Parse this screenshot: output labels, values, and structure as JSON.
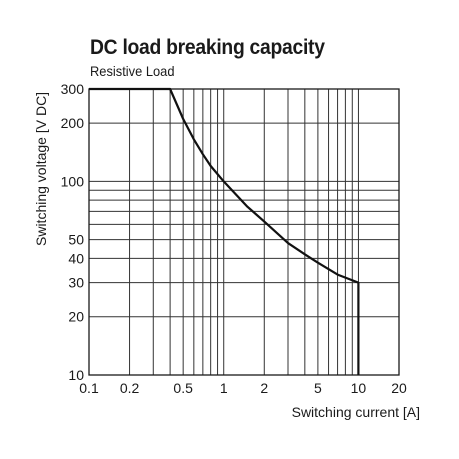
{
  "chart_data": {
    "type": "line",
    "title": "DC load breaking capacity",
    "subtitle": "Resistive Load",
    "xlabel": "Switching current [A]",
    "ylabel": "Switching voltage [V DC]",
    "xscale": "log",
    "yscale": "log",
    "xlim": [
      0.1,
      20
    ],
    "ylim": [
      10,
      300
    ],
    "xticks": [
      0.1,
      0.2,
      0.5,
      1,
      2,
      5,
      10,
      20
    ],
    "xtick_labels": [
      "0.1",
      "0.2",
      "0.5",
      "1",
      "2",
      "5",
      "10",
      "20"
    ],
    "yticks": [
      10,
      20,
      30,
      40,
      50,
      100,
      200,
      300
    ],
    "ytick_labels": [
      "10",
      "20",
      "30",
      "40",
      "50",
      "100",
      "200",
      "300"
    ],
    "x_gridlines": [
      0.1,
      0.2,
      0.3,
      0.4,
      0.5,
      0.6,
      0.7,
      0.8,
      0.9,
      1,
      2,
      3,
      4,
      5,
      6,
      7,
      8,
      9,
      10
    ],
    "y_gridlines": [
      10,
      20,
      30,
      40,
      50,
      60,
      70,
      80,
      90,
      100,
      200,
      300
    ],
    "grid": true,
    "series": [
      {
        "x": [
          0.1,
          0.4,
          0.5,
          0.6,
          0.7,
          0.8,
          1,
          1.5,
          2,
          3,
          4,
          5,
          7,
          10,
          10
        ],
        "y": [
          300,
          300,
          210,
          165,
          138,
          120,
          100,
          74,
          62,
          48,
          42,
          38,
          33,
          30,
          10
        ]
      }
    ]
  }
}
